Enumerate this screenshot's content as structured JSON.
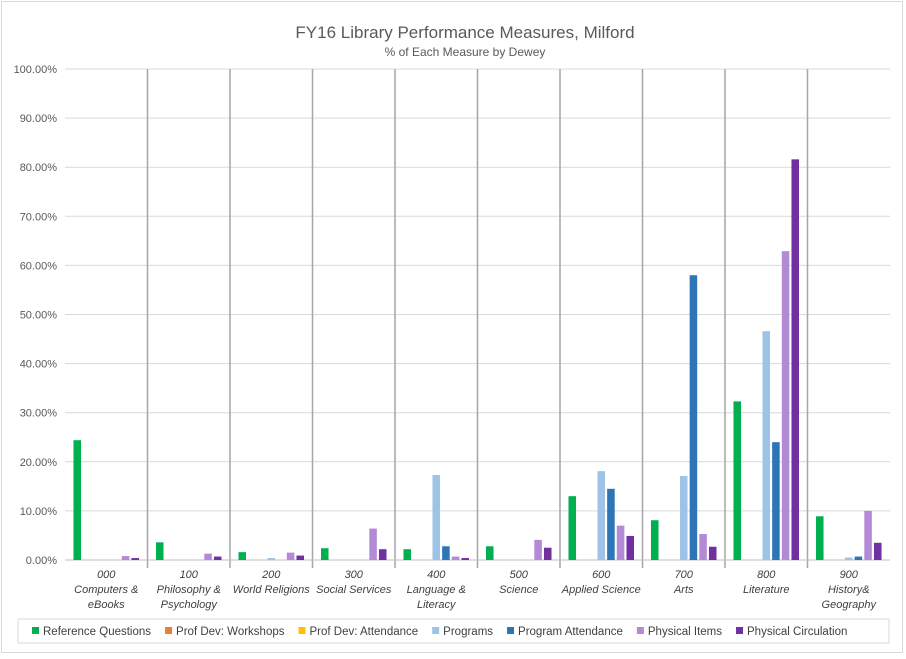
{
  "chart_data": {
    "type": "bar",
    "title": "FY16 Library Performance Measures, Milford",
    "subtitle": "% of Each Measure by Dewey",
    "ylim": [
      0,
      100
    ],
    "y_ticks": [
      "0.00%",
      "10.00%",
      "20.00%",
      "30.00%",
      "40.00%",
      "50.00%",
      "60.00%",
      "70.00%",
      "80.00%",
      "90.00%",
      "100.00%"
    ],
    "grid": true,
    "legend_position": "bottom",
    "categories": [
      [
        "000",
        "Computers &",
        "eBooks"
      ],
      [
        "100",
        "Philosophy &",
        "Psychology"
      ],
      [
        "200",
        "World Religions"
      ],
      [
        "300",
        "Social Services"
      ],
      [
        "400",
        "Language &",
        "Literacy"
      ],
      [
        "500",
        "Science"
      ],
      [
        "600",
        "Applied Science"
      ],
      [
        "700",
        "Arts"
      ],
      [
        "800",
        "Literature"
      ],
      [
        "900",
        "History&",
        "Geography"
      ]
    ],
    "series": [
      {
        "name": "Reference Questions",
        "color": "#00b050",
        "values": [
          24.4,
          3.6,
          1.6,
          2.4,
          2.2,
          2.8,
          13.0,
          8.1,
          32.3,
          8.9
        ]
      },
      {
        "name": "Prof Dev: Workshops",
        "color": "#ed7d31",
        "values": [
          0,
          0,
          0,
          0,
          0,
          0,
          0,
          0,
          0,
          0
        ]
      },
      {
        "name": "Prof Dev: Attendance",
        "color": "#ffc000",
        "values": [
          0,
          0,
          0,
          0,
          0,
          0,
          0,
          0,
          0,
          0
        ]
      },
      {
        "name": "Programs",
        "color": "#9dc3e6",
        "values": [
          0,
          0,
          0.4,
          0,
          17.3,
          0,
          18.1,
          17.1,
          46.6,
          0.5
        ]
      },
      {
        "name": "Program Attendance",
        "color": "#2e75b6",
        "values": [
          0,
          0,
          0,
          0,
          2.8,
          0,
          14.5,
          58.0,
          24.0,
          0.7
        ]
      },
      {
        "name": "Physical Items",
        "color": "#b48ad6",
        "values": [
          0.8,
          1.3,
          1.5,
          6.4,
          0.7,
          4.1,
          7.0,
          5.3,
          62.9,
          10.0
        ]
      },
      {
        "name": "Physical Circulation",
        "color": "#7030a0",
        "values": [
          0.4,
          0.7,
          0.9,
          2.2,
          0.4,
          2.5,
          4.9,
          2.7,
          81.6,
          3.5
        ]
      }
    ]
  }
}
